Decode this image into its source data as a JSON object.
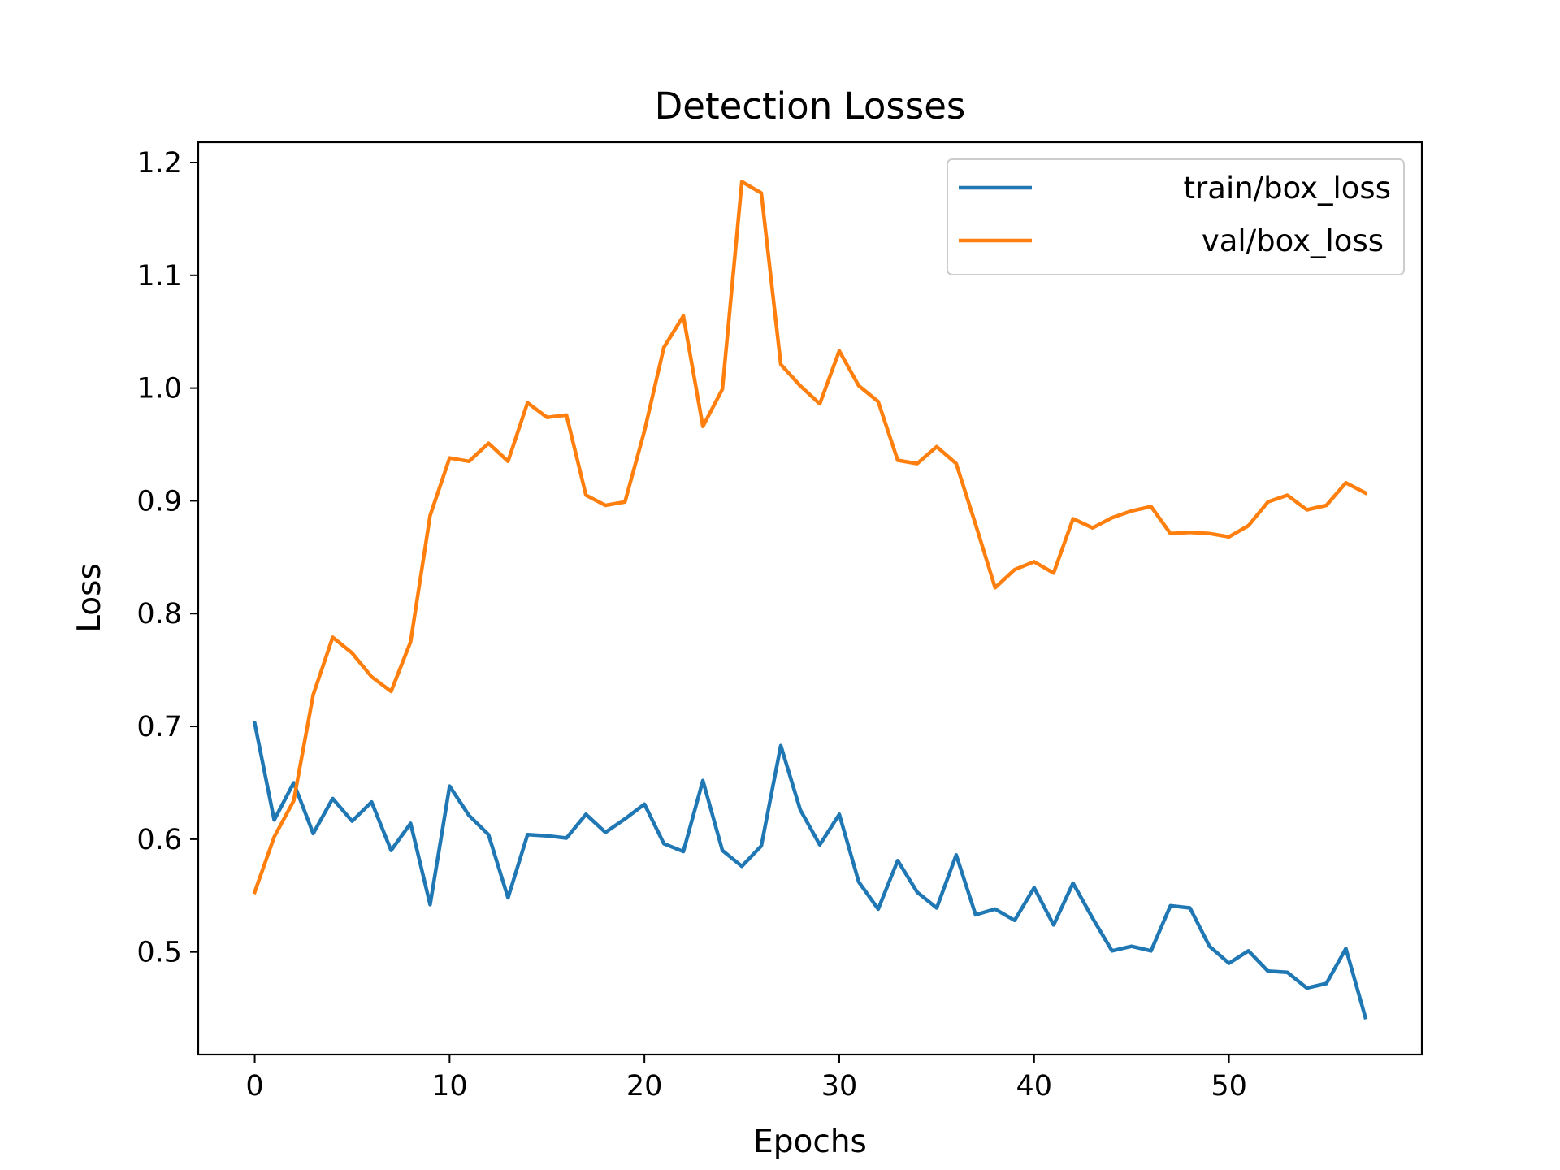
{
  "chart_data": {
    "type": "line",
    "title": "Detection Losses",
    "xlabel": "Epochs",
    "ylabel": "Loss",
    "xlim": [
      -2.9,
      59.9
    ],
    "ylim": [
      0.409,
      1.218
    ],
    "xticks": [
      0,
      10,
      20,
      30,
      40,
      50
    ],
    "yticks": [
      0.5,
      0.6,
      0.7,
      0.8,
      0.9,
      1.0,
      1.1,
      1.2
    ],
    "xtick_labels": [
      "0",
      "10",
      "20",
      "30",
      "40",
      "50"
    ],
    "ytick_labels": [
      "0.5",
      "0.6",
      "0.7",
      "0.8",
      "0.9",
      "1.0",
      "1.1",
      "1.2"
    ],
    "grid": false,
    "legend_position": "top-right",
    "x": [
      0,
      1,
      2,
      3,
      4,
      5,
      6,
      7,
      8,
      9,
      10,
      11,
      12,
      13,
      14,
      15,
      16,
      17,
      18,
      19,
      20,
      21,
      22,
      23,
      24,
      25,
      26,
      27,
      28,
      29,
      30,
      31,
      32,
      33,
      34,
      35,
      36,
      37,
      38,
      39,
      40,
      41,
      42,
      43,
      44,
      45,
      46,
      47,
      48,
      49,
      50,
      51,
      52,
      53,
      54,
      55,
      56,
      57
    ],
    "series": [
      {
        "name": "train/box_loss",
        "color": "#1f77b4",
        "values": [
          0.703,
          0.617,
          0.65,
          0.605,
          0.636,
          0.616,
          0.633,
          0.59,
          0.614,
          0.542,
          0.647,
          0.621,
          0.604,
          0.548,
          0.604,
          0.603,
          0.601,
          0.622,
          0.606,
          0.618,
          0.631,
          0.596,
          0.589,
          0.652,
          0.59,
          0.576,
          0.594,
          0.683,
          0.626,
          0.595,
          0.622,
          0.562,
          0.538,
          0.581,
          0.553,
          0.539,
          0.586,
          0.533,
          0.538,
          0.528,
          0.557,
          0.524,
          0.561,
          0.53,
          0.501,
          0.505,
          0.501,
          0.541,
          0.539,
          0.505,
          0.49,
          0.501,
          0.483,
          0.482,
          0.468,
          0.472,
          0.503,
          0.442
        ]
      },
      {
        "name": "val/box_loss",
        "color": "#ff7f0e",
        "values": [
          0.553,
          0.602,
          0.634,
          0.728,
          0.779,
          0.765,
          0.744,
          0.731,
          0.775,
          0.887,
          0.938,
          0.935,
          0.951,
          0.935,
          0.987,
          0.974,
          0.976,
          0.905,
          0.896,
          0.899,
          0.962,
          1.036,
          1.064,
          0.966,
          0.999,
          1.183,
          1.173,
          1.021,
          1.002,
          0.986,
          1.033,
          1.002,
          0.988,
          0.936,
          0.933,
          0.948,
          0.933,
          0.879,
          0.823,
          0.839,
          0.846,
          0.836,
          0.884,
          0.876,
          0.885,
          0.891,
          0.895,
          0.871,
          0.872,
          0.871,
          0.868,
          0.878,
          0.899,
          0.905,
          0.892,
          0.896,
          0.916,
          0.907
        ]
      }
    ]
  }
}
